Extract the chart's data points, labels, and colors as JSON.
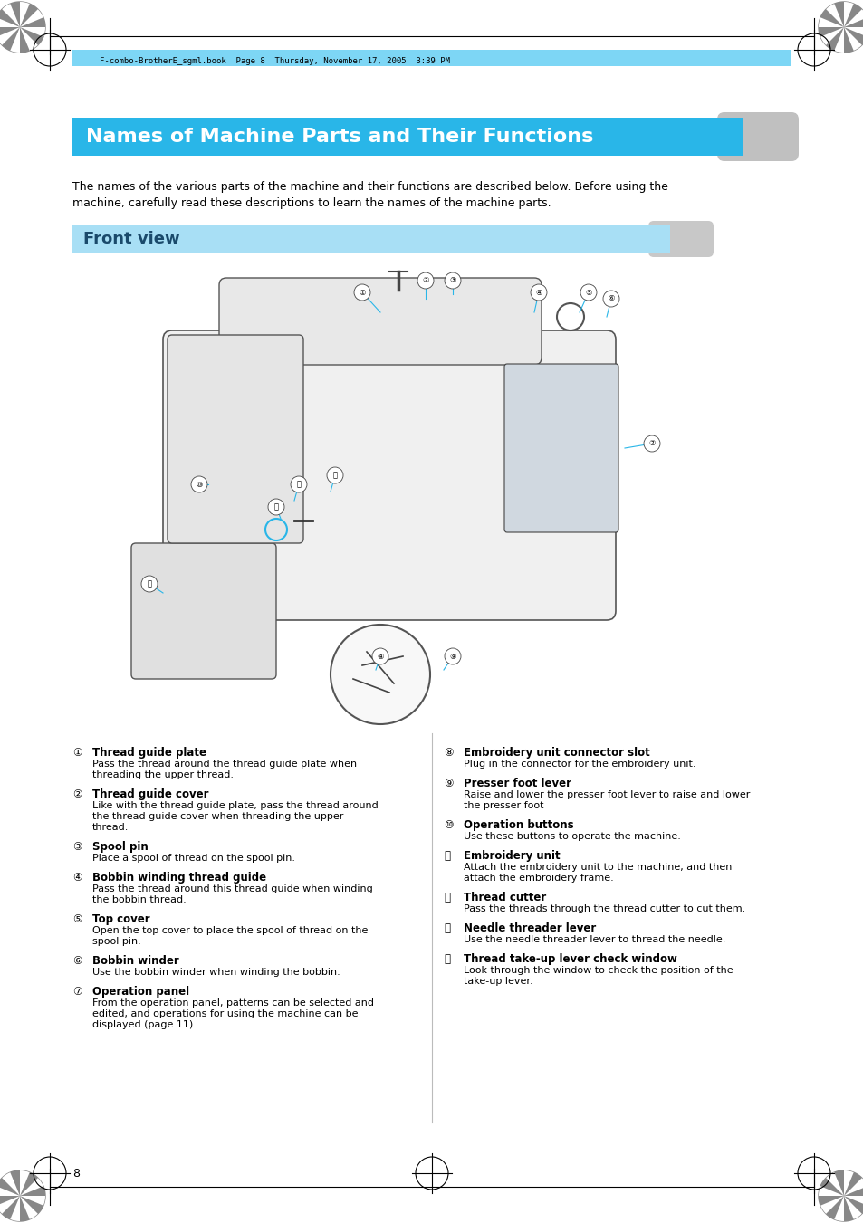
{
  "page_bg": "#ffffff",
  "header_stripe_color": "#29b6e8",
  "header_stripe_light": "#7dd6f5",
  "section_bg": "#29b6e8",
  "section_text_color": "#ffffff",
  "body_text_color": "#000000",
  "title_text": "Names of Machine Parts and Their Functions",
  "front_view_text": "Front view",
  "intro_text": "The names of the various parts of the machine and their functions are described below. Before using the\nmachine, carefully read these descriptions to learn the names of the machine parts.",
  "page_number": "8",
  "header_file_text": "F-combo-BrotherE_sgml.book  Page 8  Thursday, November 17, 2005  3:39 PM",
  "left_items": [
    {
      "num": "①",
      "title": "Thread guide plate",
      "desc": "Pass the thread around the thread guide plate when\nthreading the upper thread."
    },
    {
      "num": "②",
      "title": "Thread guide cover",
      "desc": "Like with the thread guide plate, pass the thread around\nthe thread guide cover when threading the upper\nthread."
    },
    {
      "num": "③",
      "title": "Spool pin",
      "desc": "Place a spool of thread on the spool pin."
    },
    {
      "num": "④",
      "title": "Bobbin winding thread guide",
      "desc": "Pass the thread around this thread guide when winding\nthe bobbin thread."
    },
    {
      "num": "⑤",
      "title": "Top cover",
      "desc": "Open the top cover to place the spool of thread on the\nspool pin."
    },
    {
      "num": "⑥",
      "title": "Bobbin winder",
      "desc": "Use the bobbin winder when winding the bobbin."
    },
    {
      "num": "⑦",
      "title": "Operation panel",
      "desc": "From the operation panel, patterns can be selected and\nedited, and operations for using the machine can be\ndisplayed (page 11)."
    }
  ],
  "right_items": [
    {
      "num": "⑧",
      "title": "Embroidery unit connector slot",
      "desc": "Plug in the connector for the embroidery unit."
    },
    {
      "num": "⑨",
      "title": "Presser foot lever",
      "desc": "Raise and lower the presser foot lever to raise and lower\nthe presser foot"
    },
    {
      "num": "⑩",
      "title": "Operation buttons",
      "desc": "Use these buttons to operate the machine."
    },
    {
      "num": "⑪",
      "title": "Embroidery unit",
      "desc": "Attach the embroidery unit to the machine, and then\nattach the embroidery frame."
    },
    {
      "num": "⑫",
      "title": "Thread cutter",
      "desc": "Pass the threads through the thread cutter to cut them."
    },
    {
      "num": "⑬",
      "title": "Needle threader lever",
      "desc": "Use the needle threader lever to thread the needle."
    },
    {
      "num": "⑭",
      "title": "Thread take-up lever check window",
      "desc": "Look through the window to check the position of the\ntake-up lever."
    }
  ]
}
